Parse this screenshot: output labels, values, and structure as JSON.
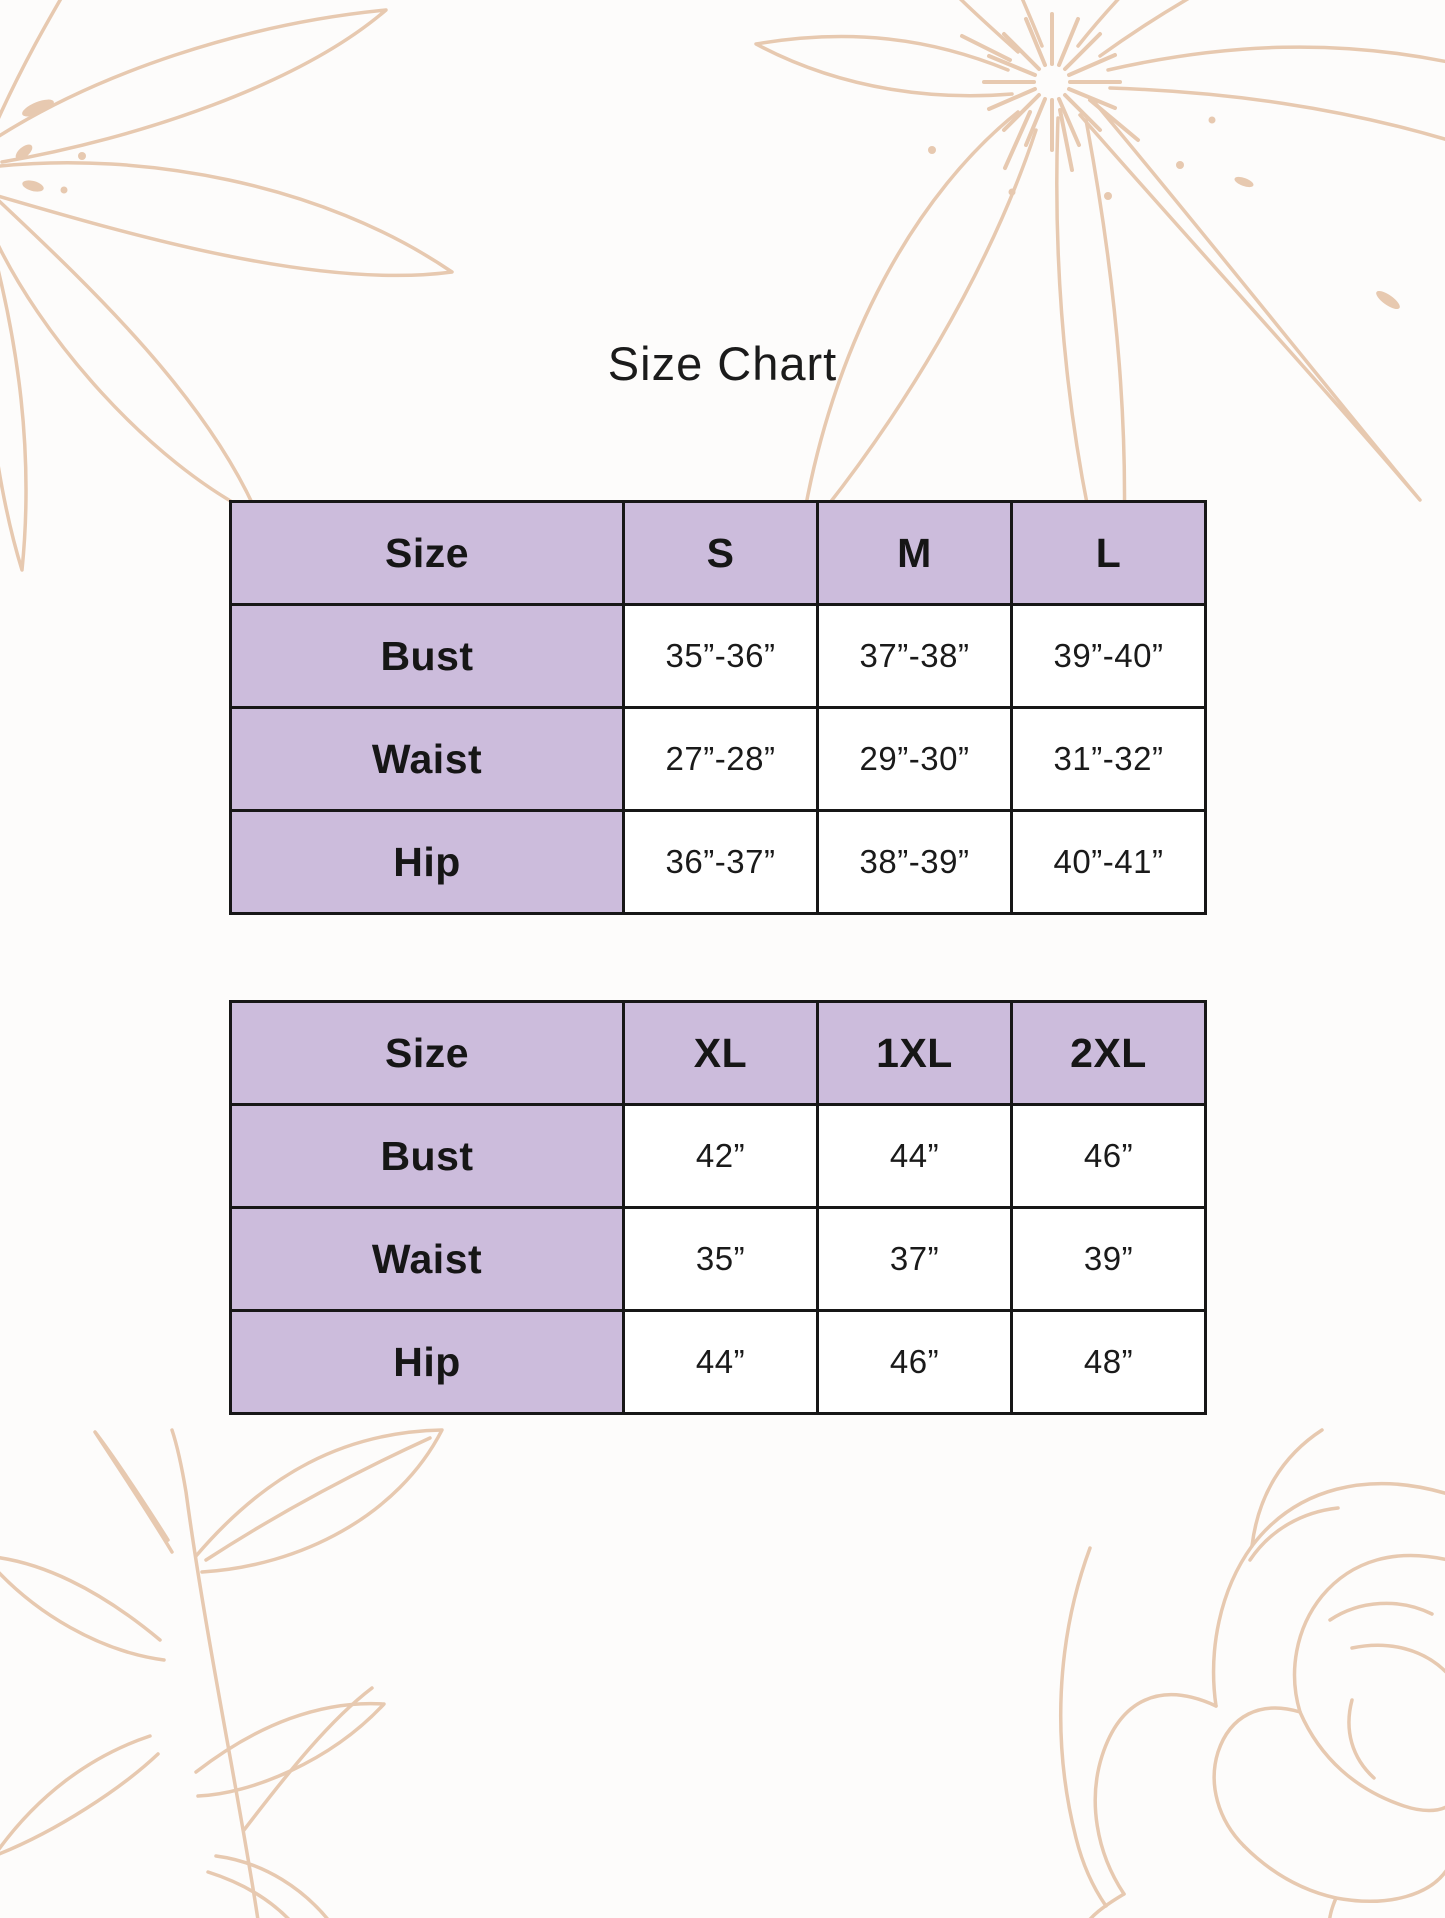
{
  "title": "Size Chart",
  "tables": [
    {
      "name": "standard-sizes",
      "columns": [
        "Size",
        "S",
        "M",
        "L"
      ],
      "rows": [
        {
          "label": "Bust",
          "values": [
            "35”-36”",
            "37”-38”",
            "39”-40”"
          ]
        },
        {
          "label": "Waist",
          "values": [
            "27”-28”",
            "29”-30”",
            "31”-32”"
          ]
        },
        {
          "label": "Hip",
          "values": [
            "36”-37”",
            "38”-39”",
            "40”-41”"
          ]
        }
      ]
    },
    {
      "name": "extended-sizes",
      "columns": [
        "Size",
        "XL",
        "1XL",
        "2XL"
      ],
      "rows": [
        {
          "label": "Bust",
          "values": [
            "42”",
            "44”",
            "46”"
          ]
        },
        {
          "label": "Waist",
          "values": [
            "35”",
            "37”",
            "39”"
          ]
        },
        {
          "label": "Hip",
          "values": [
            "44”",
            "46”",
            "48”"
          ]
        }
      ]
    }
  ],
  "colors": {
    "header_bg": "#ccbcdc",
    "cell_bg": "#ffffff",
    "border": "#171717",
    "text": "#161616",
    "floral_line": "#e7c9b0",
    "background": "#fdfcfb"
  },
  "decorations": [
    "flower-line-art-top-left",
    "flower-line-art-top-right",
    "leafy-branch-line-art-bottom-left",
    "peony-line-art-bottom-right"
  ]
}
